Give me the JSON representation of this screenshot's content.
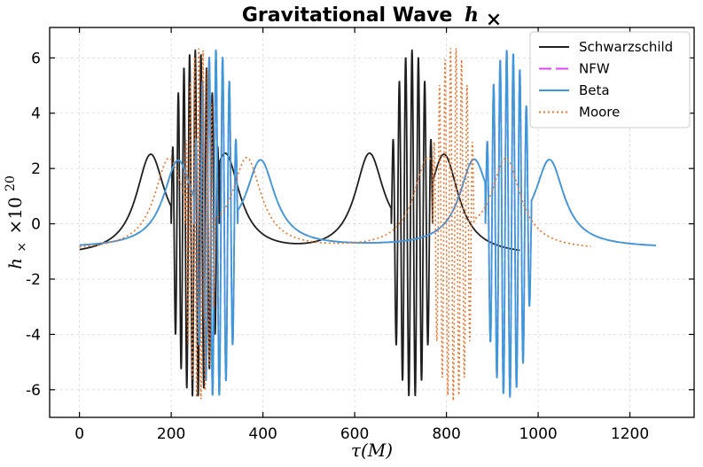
{
  "chart_data": {
    "type": "line",
    "title": "Gravitational Wave",
    "title_symbol": "h",
    "title_symbol_sub": "×",
    "xlabel": "τ(M)",
    "ylabel": "h× ×10^20",
    "ylabel_parts": {
      "var": "h",
      "sub": "×",
      "mult": "×10",
      "exp": "20"
    },
    "xlim": [
      -65,
      1340
    ],
    "ylim": [
      -7.0,
      7.1
    ],
    "xticks": [
      0,
      200,
      400,
      600,
      800,
      1000,
      1200
    ],
    "xtick_labels": [
      "0",
      "200",
      "400",
      "600",
      "800",
      "1000",
      "1200"
    ],
    "yticks": [
      -6,
      -4,
      -2,
      0,
      2,
      4,
      6
    ],
    "ytick_labels": [
      "-6",
      "-4",
      "-2",
      "0",
      "2",
      "4",
      "6"
    ],
    "grid": true,
    "legend_position": "top-right",
    "series": [
      {
        "name": "Schwarzschild",
        "color": "#1f1f1f",
        "style": "solid",
        "x_start": 0,
        "x_end": 960,
        "bursts": [
          {
            "x0": 200,
            "x1": 305,
            "cycles": 8.5,
            "amp": 6.3
          },
          {
            "x0": 680,
            "x1": 770,
            "cycles": 6.5,
            "amp": 6.3
          }
        ],
        "peaks": [
          {
            "x": 155,
            "y": 2.3
          },
          {
            "x": 318,
            "y": 2.3
          },
          {
            "x": 632,
            "y": 2.3
          },
          {
            "x": 795,
            "y": 2.3
          }
        ],
        "baseline": -1.2
      },
      {
        "name": "NFW",
        "color": "#e040fb",
        "style": "dashed",
        "x_start": 0,
        "x_end": 1257,
        "bursts": [
          {
            "x0": 250,
            "x1": 345,
            "cycles": 6.5,
            "amp": 6.3
          },
          {
            "x0": 885,
            "x1": 985,
            "cycles": 7.0,
            "amp": 6.3
          }
        ],
        "peaks": [
          {
            "x": 215,
            "y": 2.15
          },
          {
            "x": 395,
            "y": 2.15
          },
          {
            "x": 860,
            "y": 2.15
          },
          {
            "x": 1025,
            "y": 2.15
          }
        ],
        "baseline": -0.9
      },
      {
        "name": "Beta",
        "color": "#3a9ad9",
        "style": "solid",
        "x_start": 0,
        "x_end": 1257,
        "bursts": [
          {
            "x0": 250,
            "x1": 345,
            "cycles": 6.5,
            "amp": 6.3
          },
          {
            "x0": 885,
            "x1": 985,
            "cycles": 7.0,
            "amp": 6.3
          }
        ],
        "peaks": [
          {
            "x": 215,
            "y": 2.15
          },
          {
            "x": 395,
            "y": 2.15
          },
          {
            "x": 860,
            "y": 2.15
          },
          {
            "x": 1025,
            "y": 2.15
          }
        ],
        "baseline": -0.9
      },
      {
        "name": "Moore",
        "color": "#e8722c",
        "style": "dotted",
        "x_start": 0,
        "x_end": 1115,
        "bursts": [
          {
            "x0": 230,
            "x1": 295,
            "cycles": 7.0,
            "amp": 6.4
          },
          {
            "x0": 770,
            "x1": 860,
            "cycles": 7.5,
            "amp": 6.4
          }
        ],
        "peaks": [
          {
            "x": 195,
            "y": 2.2
          },
          {
            "x": 365,
            "y": 2.2
          },
          {
            "x": 760,
            "y": 2.2
          },
          {
            "x": 930,
            "y": 2.2
          }
        ],
        "baseline": -1.0
      }
    ]
  }
}
